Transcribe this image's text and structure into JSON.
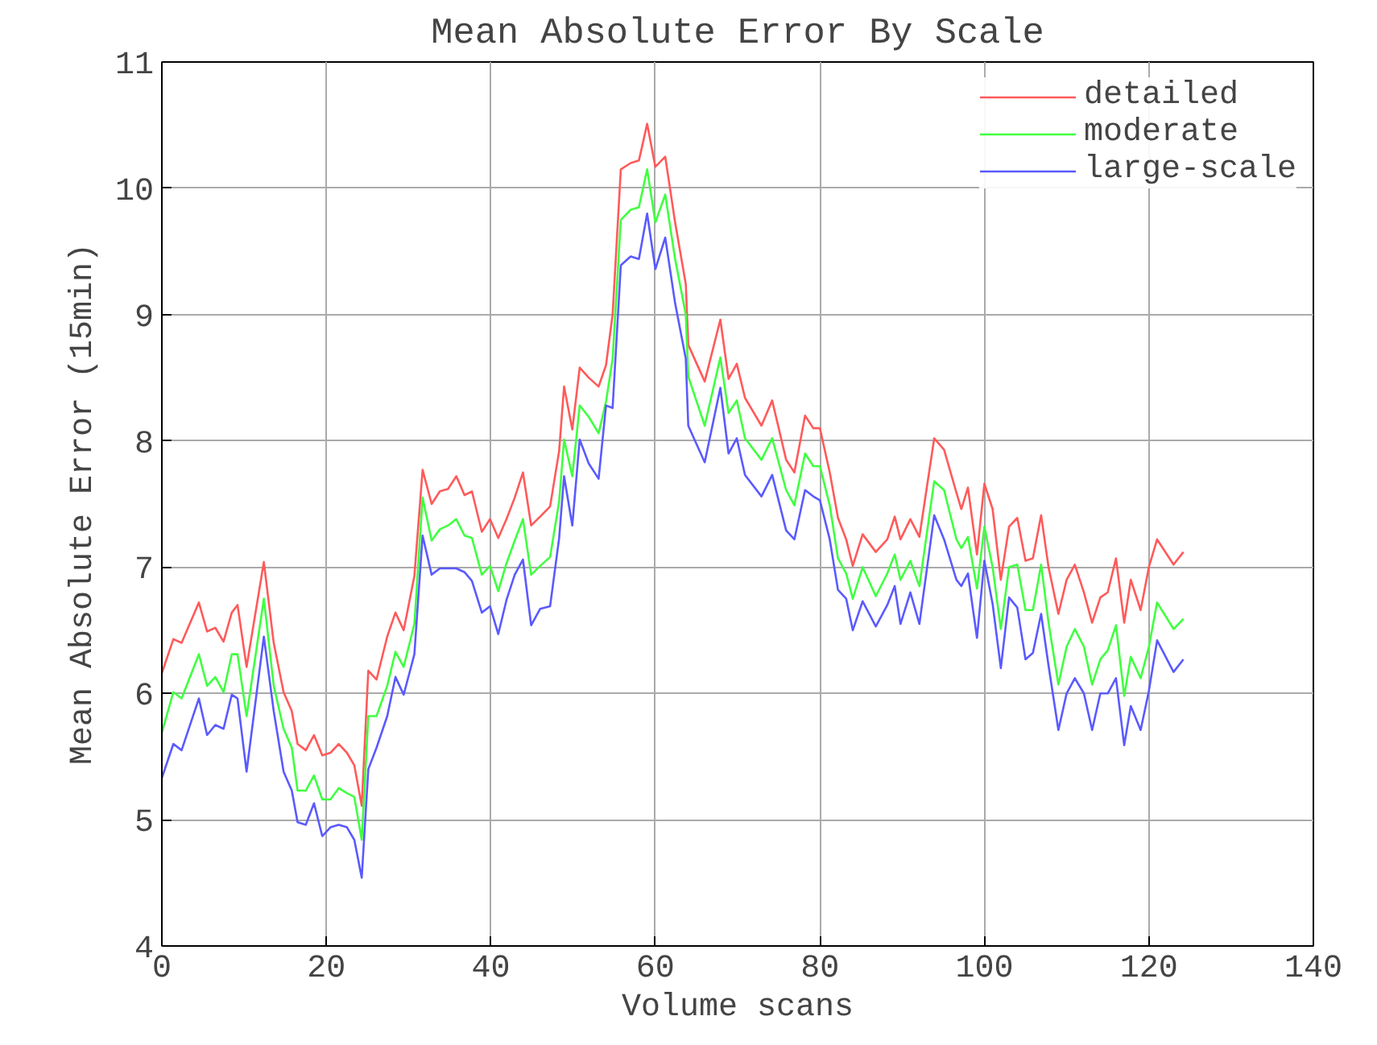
{
  "chart_data": {
    "type": "line",
    "title": "Mean Absolute Error By Scale",
    "xlabel": "Volume scans",
    "ylabel": "Mean Absolute Error (15min)",
    "x": [
      0,
      1.4,
      2.4,
      4.5,
      5.5,
      6.5,
      7.5,
      8.5,
      9.2,
      10.3,
      12.4,
      13.6,
      14.8,
      15.8,
      16.5,
      17.5,
      18.5,
      19.5,
      20.5,
      21.5,
      22.5,
      23.4,
      24.3,
      25.1,
      26.1,
      27.4,
      28.4,
      29.4,
      30.7,
      31.7,
      32.8,
      33.8,
      34.8,
      35.8,
      36.8,
      37.7,
      38.9,
      39.9,
      40.9,
      41.9,
      42.9,
      43.9,
      44.9,
      46.0,
      47.2,
      48.3,
      48.9,
      49.9,
      50.8,
      51.9,
      53.1,
      54.0,
      54.8,
      55.8,
      57.0,
      58.0,
      59.0,
      60.0,
      61.2,
      62.4,
      63.7,
      64.0,
      66.0,
      67.9,
      68.9,
      69.9,
      70.9,
      72.9,
      74.2,
      75.9,
      76.9,
      78.2,
      79.2,
      80.0,
      81.2,
      82.2,
      83.2,
      84.0,
      85.2,
      86.8,
      88.2,
      89.1,
      89.8,
      91.0,
      92.1,
      93.9,
      95.1,
      96.6,
      97.2,
      98.0,
      99.1,
      100,
      101,
      102,
      103,
      104,
      105,
      105.9,
      106.9,
      107.8,
      109,
      110,
      111,
      112.1,
      113.1,
      114.1,
      115,
      116,
      117,
      117.8,
      119,
      120,
      121,
      123,
      124.2
    ],
    "series": [
      {
        "name": "detailed",
        "color": "#ff5a5a",
        "values": [
          6.16,
          6.43,
          6.4,
          6.72,
          6.49,
          6.52,
          6.41,
          6.64,
          6.7,
          6.21,
          7.04,
          6.4,
          6.01,
          5.86,
          5.6,
          5.55,
          5.67,
          5.51,
          5.53,
          5.6,
          5.53,
          5.43,
          5.11,
          6.18,
          6.11,
          6.45,
          6.64,
          6.5,
          6.93,
          7.77,
          7.5,
          7.6,
          7.62,
          7.72,
          7.57,
          7.6,
          7.28,
          7.38,
          7.23,
          7.38,
          7.55,
          7.75,
          7.33,
          7.4,
          7.48,
          7.92,
          8.43,
          8.09,
          8.58,
          8.5,
          8.43,
          8.6,
          9.0,
          10.15,
          10.2,
          10.22,
          10.51,
          10.17,
          10.25,
          9.73,
          9.24,
          8.76,
          8.47,
          8.96,
          8.49,
          8.61,
          8.34,
          8.12,
          8.32,
          7.85,
          7.75,
          8.2,
          8.1,
          8.1,
          7.75,
          7.39,
          7.22,
          7.01,
          7.26,
          7.12,
          7.22,
          7.4,
          7.22,
          7.38,
          7.24,
          8.02,
          7.93,
          7.59,
          7.46,
          7.63,
          7.1,
          7.66,
          7.46,
          6.9,
          7.32,
          7.39,
          7.05,
          7.07,
          7.41,
          7.0,
          6.63,
          6.9,
          7.02,
          6.8,
          6.56,
          6.76,
          6.8,
          7.07,
          6.56,
          6.9,
          6.66,
          7.0,
          7.22,
          7.02,
          7.12
        ]
      },
      {
        "name": "moderate",
        "color": "#40ff40",
        "values": [
          5.69,
          6.01,
          5.96,
          6.31,
          6.06,
          6.13,
          6.01,
          6.31,
          6.31,
          5.82,
          6.75,
          6.06,
          5.72,
          5.57,
          5.23,
          5.23,
          5.35,
          5.16,
          5.16,
          5.25,
          5.21,
          5.18,
          4.84,
          5.82,
          5.82,
          6.06,
          6.33,
          6.21,
          6.55,
          7.55,
          7.21,
          7.3,
          7.33,
          7.38,
          7.25,
          7.23,
          6.94,
          7.01,
          6.81,
          7.03,
          7.21,
          7.38,
          6.94,
          7.01,
          7.08,
          7.52,
          8.01,
          7.72,
          8.28,
          8.19,
          8.06,
          8.31,
          8.65,
          9.75,
          9.83,
          9.85,
          10.15,
          9.73,
          9.95,
          9.44,
          9.0,
          8.51,
          8.12,
          8.66,
          8.22,
          8.32,
          8.02,
          7.85,
          8.02,
          7.61,
          7.49,
          7.9,
          7.8,
          7.8,
          7.49,
          7.07,
          6.95,
          6.75,
          7.0,
          6.77,
          6.95,
          7.1,
          6.9,
          7.05,
          6.85,
          7.68,
          7.61,
          7.22,
          7.15,
          7.24,
          6.83,
          7.32,
          7.0,
          6.51,
          7.0,
          7.02,
          6.66,
          6.66,
          7.02,
          6.56,
          6.07,
          6.37,
          6.51,
          6.37,
          6.07,
          6.27,
          6.34,
          6.54,
          5.98,
          6.29,
          6.12,
          6.37,
          6.72,
          6.51,
          6.59
        ]
      },
      {
        "name": "large-scale",
        "color": "#5a5aff",
        "values": [
          5.33,
          5.6,
          5.55,
          5.96,
          5.67,
          5.75,
          5.72,
          5.99,
          5.96,
          5.38,
          6.45,
          5.86,
          5.38,
          5.23,
          4.98,
          4.96,
          5.13,
          4.87,
          4.94,
          4.96,
          4.94,
          4.84,
          4.54,
          5.4,
          5.57,
          5.82,
          6.13,
          5.99,
          6.31,
          7.25,
          6.94,
          6.99,
          6.99,
          6.99,
          6.96,
          6.89,
          6.64,
          6.69,
          6.47,
          6.74,
          6.94,
          7.06,
          6.54,
          6.67,
          6.69,
          7.23,
          7.72,
          7.33,
          8.01,
          7.82,
          7.7,
          8.28,
          8.26,
          9.39,
          9.46,
          9.44,
          9.8,
          9.36,
          9.61,
          9.09,
          8.65,
          8.12,
          7.83,
          8.42,
          7.9,
          8.02,
          7.73,
          7.56,
          7.73,
          7.29,
          7.22,
          7.61,
          7.56,
          7.53,
          7.22,
          6.82,
          6.75,
          6.5,
          6.73,
          6.53,
          6.7,
          6.85,
          6.55,
          6.8,
          6.55,
          7.41,
          7.22,
          6.9,
          6.85,
          6.95,
          6.44,
          7.05,
          6.71,
          6.2,
          6.76,
          6.68,
          6.27,
          6.32,
          6.63,
          6.22,
          5.71,
          6.0,
          6.12,
          6.0,
          5.71,
          6.0,
          6.0,
          6.12,
          5.59,
          5.9,
          5.71,
          6.02,
          6.42,
          6.17,
          6.27
        ]
      }
    ],
    "xlim": [
      0,
      140
    ],
    "xticks": [
      0,
      20,
      40,
      60,
      80,
      100,
      120,
      140
    ],
    "ylim": [
      4,
      11
    ],
    "yticks": [
      4,
      5,
      6,
      7,
      8,
      9,
      10,
      11
    ],
    "grid": true,
    "legend": "top right"
  }
}
